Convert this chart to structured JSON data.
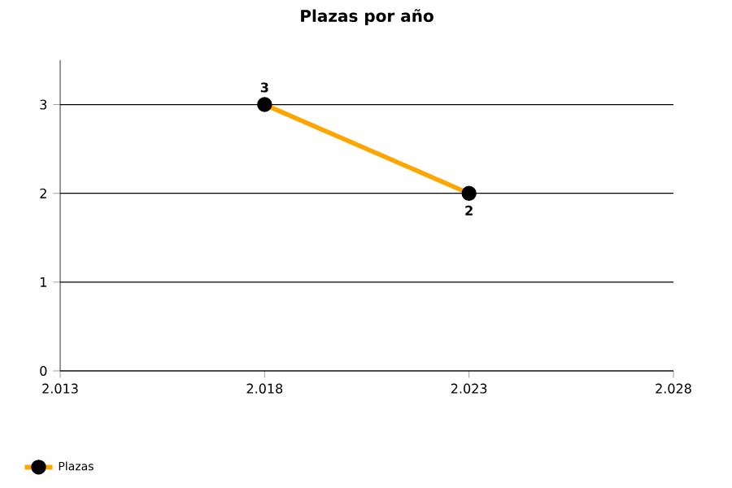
{
  "chart_data": {
    "type": "line",
    "title": "Plazas por año",
    "x": [
      2018,
      2023
    ],
    "series": [
      {
        "name": "Plazas",
        "color": "#ffa500",
        "values": [
          3,
          2
        ]
      }
    ],
    "xlim": [
      2013,
      2028
    ],
    "xticks": [
      {
        "value": 2013,
        "label": "2.013"
      },
      {
        "value": 2018,
        "label": "2.018"
      },
      {
        "value": 2023,
        "label": "2.023"
      },
      {
        "value": 2028,
        "label": "2.028"
      }
    ],
    "ylim": [
      0,
      3.5
    ],
    "yticks": [
      0,
      1,
      2,
      3
    ],
    "grid": "y",
    "legend": "bottom left",
    "marker": "circle",
    "line_style": "solid",
    "data_labels": true
  }
}
